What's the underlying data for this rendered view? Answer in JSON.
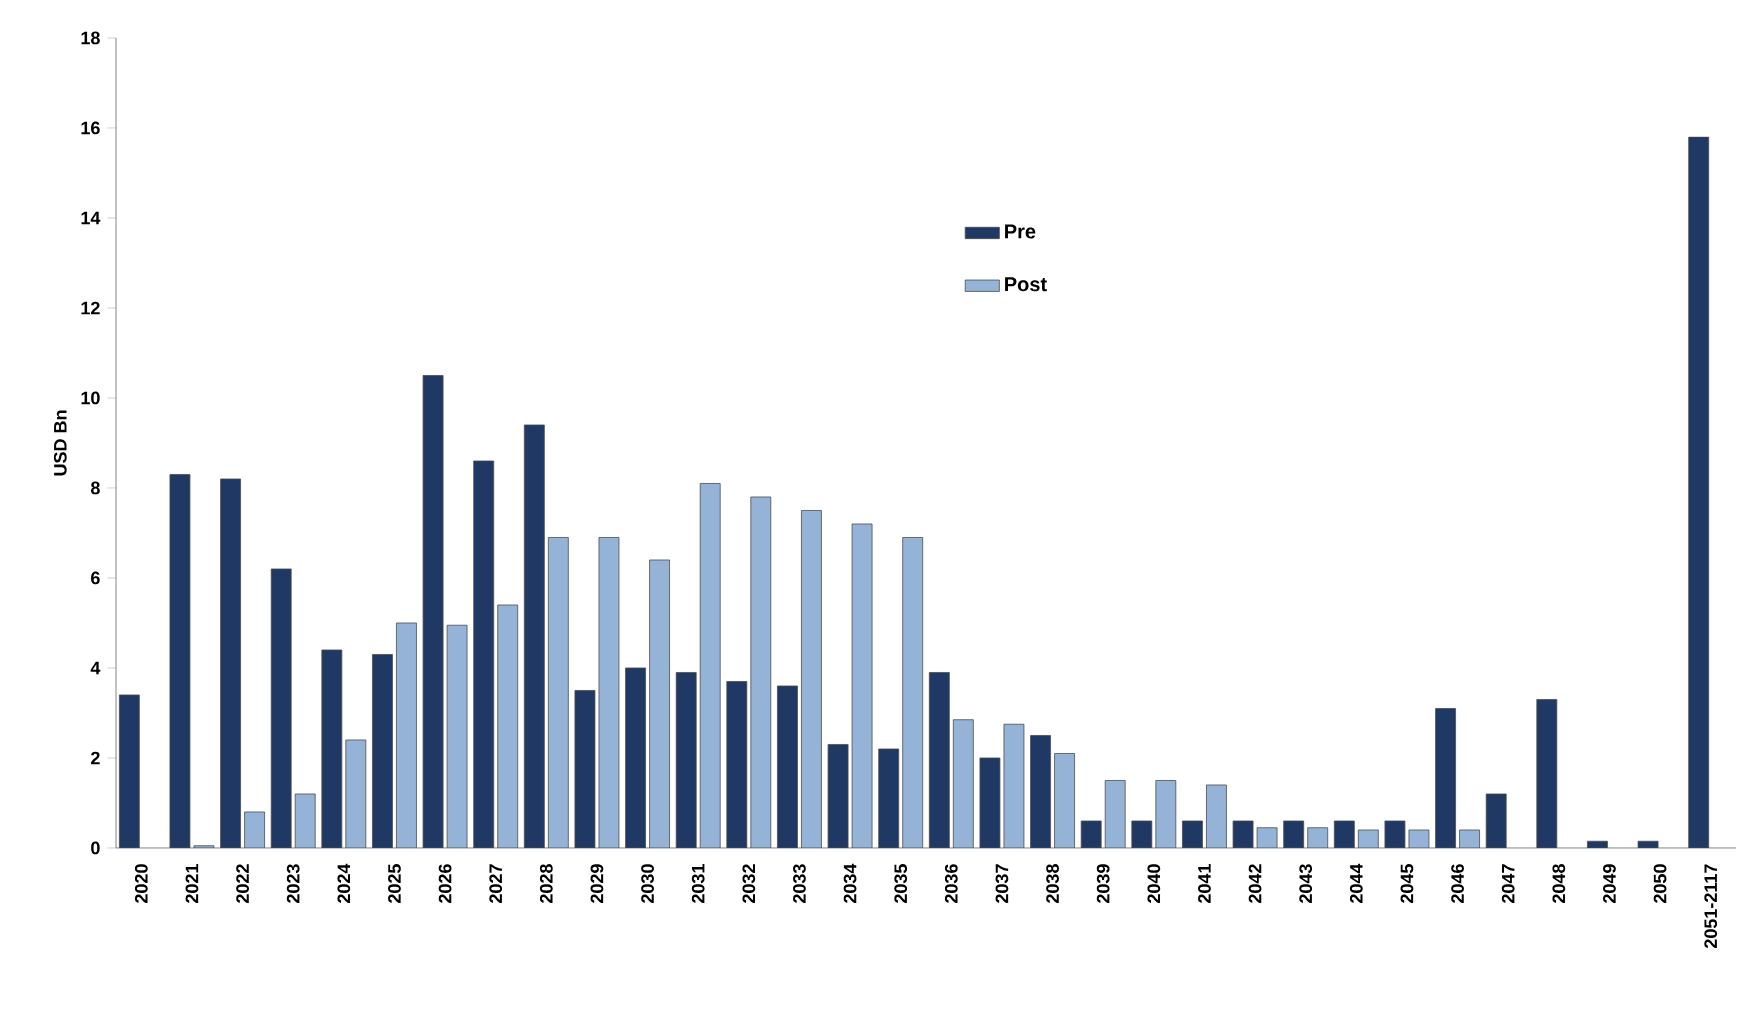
{
  "chart_data": {
    "type": "bar",
    "ylabel": "USD Bn",
    "categories": [
      "2020",
      "2021",
      "2022",
      "2023",
      "2024",
      "2025",
      "2026",
      "2027",
      "2028",
      "2029",
      "2030",
      "2031",
      "2032",
      "2033",
      "2034",
      "2035",
      "2036",
      "2037",
      "2038",
      "2039",
      "2040",
      "2041",
      "2042",
      "2043",
      "2044",
      "2045",
      "2046",
      "2047",
      "2048",
      "2049",
      "2050",
      "2051-2117"
    ],
    "series": [
      {
        "name": "Pre",
        "color": "#1f3864",
        "values": [
          3.4,
          8.3,
          8.2,
          6.2,
          4.4,
          4.3,
          10.5,
          8.6,
          9.4,
          3.5,
          4.0,
          3.9,
          3.7,
          3.6,
          2.3,
          2.2,
          3.9,
          2.0,
          2.5,
          0.6,
          0.6,
          0.6,
          0.6,
          0.6,
          0.6,
          0.6,
          3.1,
          1.2,
          3.3,
          0.15,
          0.15,
          15.8
        ]
      },
      {
        "name": "Post",
        "color": "#95b3d7",
        "values": [
          null,
          0.05,
          0.8,
          1.2,
          2.4,
          5.0,
          4.95,
          5.4,
          6.9,
          6.9,
          6.4,
          8.1,
          7.8,
          7.5,
          7.2,
          6.9,
          2.85,
          2.75,
          2.1,
          1.5,
          1.5,
          1.4,
          0.45,
          0.45,
          0.4,
          0.4,
          0.4,
          null,
          null,
          null,
          null,
          null
        ]
      }
    ],
    "ylim": [
      0,
      18
    ],
    "yticks": [
      0,
      2,
      4,
      6,
      8,
      10,
      12,
      14,
      16,
      18
    ],
    "grid": false,
    "legend": "top"
  }
}
